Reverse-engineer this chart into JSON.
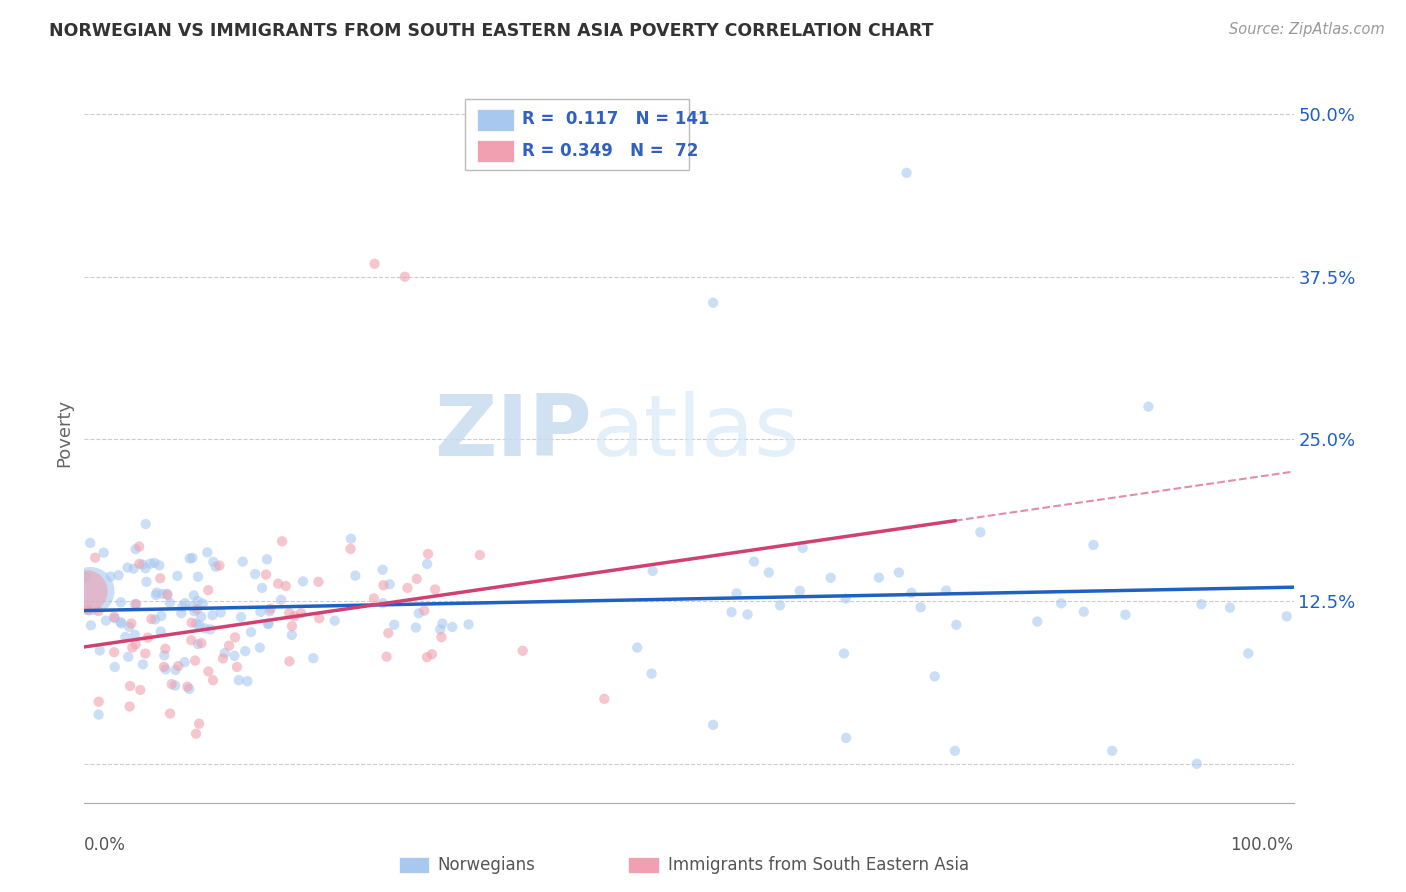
{
  "title": "NORWEGIAN VS IMMIGRANTS FROM SOUTH EASTERN ASIA POVERTY CORRELATION CHART",
  "source": "Source: ZipAtlas.com",
  "ylabel": "Poverty",
  "yticks": [
    0.0,
    0.125,
    0.25,
    0.375,
    0.5
  ],
  "ytick_labels": [
    "",
    "12.5%",
    "25.0%",
    "37.5%",
    "50.0%"
  ],
  "xlim": [
    0.0,
    1.0
  ],
  "ylim": [
    -0.03,
    0.54
  ],
  "color_blue": "#A8C8F0",
  "color_pink": "#F0A0B0",
  "line_color_blue": "#2060C0",
  "line_color_pink": "#D04070",
  "watermark_color": "#D8E8F8",
  "background_color": "#FFFFFF",
  "grid_color": "#CCCCCC",
  "title_color": "#333333",
  "legend_text_color": "#3060C0",
  "blue_slope": 0.018,
  "blue_intercept": 0.118,
  "pink_slope": 0.135,
  "pink_intercept": 0.09
}
